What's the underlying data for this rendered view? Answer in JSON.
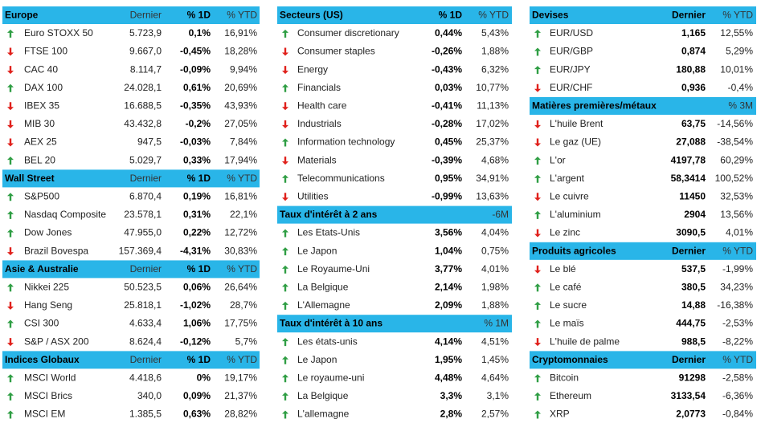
{
  "columns": [
    {
      "panels": [
        {
          "title": "Europe",
          "headers": [
            "Dernier",
            "% 1D",
            "% YTD"
          ],
          "rows": [
            {
              "name": "Euro STOXX 50",
              "trend": "up",
              "values": [
                "5.723,9",
                "0,1%",
                "16,91%"
              ]
            },
            {
              "name": "FTSE 100",
              "trend": "down",
              "values": [
                "9.667,0",
                "-0,45%",
                "18,28%"
              ]
            },
            {
              "name": "CAC 40",
              "trend": "down",
              "values": [
                "8.114,7",
                "-0,09%",
                "9,94%"
              ]
            },
            {
              "name": "DAX 100",
              "trend": "up",
              "values": [
                "24.028,1",
                "0,61%",
                "20,69%"
              ]
            },
            {
              "name": "IBEX 35",
              "trend": "down",
              "values": [
                "16.688,5",
                "-0,35%",
                "43,93%"
              ]
            },
            {
              "name": "MIB 30",
              "trend": "down",
              "values": [
                "43.432,8",
                "-0,2%",
                "27,05%"
              ]
            },
            {
              "name": "AEX 25",
              "trend": "down",
              "values": [
                "947,5",
                "-0,03%",
                "7,84%"
              ]
            },
            {
              "name": "BEL 20",
              "trend": "up",
              "values": [
                "5.029,7",
                "0,33%",
                "17,94%"
              ]
            }
          ]
        },
        {
          "title": "Wall Street",
          "headers": [
            "Dernier",
            "% 1D",
            "% YTD"
          ],
          "rows": [
            {
              "name": "S&P500",
              "trend": "up",
              "values": [
                "6.870,4",
                "0,19%",
                "16,81%"
              ]
            },
            {
              "name": "Nasdaq Composite",
              "trend": "up",
              "values": [
                "23.578,1",
                "0,31%",
                "22,1%"
              ]
            },
            {
              "name": "Dow Jones",
              "trend": "up",
              "values": [
                "47.955,0",
                "0,22%",
                "12,72%"
              ]
            },
            {
              "name": "Brazil Bovespa",
              "trend": "down",
              "values": [
                "157.369,4",
                "-4,31%",
                "30,83%"
              ]
            }
          ]
        },
        {
          "title": "Asie & Australie",
          "headers": [
            "Dernier",
            "% 1D",
            "% YTD"
          ],
          "rows": [
            {
              "name": "Nikkei 225",
              "trend": "up",
              "values": [
                "50.523,5",
                "0,06%",
                "26,64%"
              ]
            },
            {
              "name": "Hang Seng",
              "trend": "down",
              "values": [
                "25.818,1",
                "-1,02%",
                "28,7%"
              ]
            },
            {
              "name": "CSI 300",
              "trend": "up",
              "values": [
                "4.633,4",
                "1,06%",
                "17,75%"
              ]
            },
            {
              "name": "S&P / ASX 200",
              "trend": "down",
              "values": [
                "8.624,4",
                "-0,12%",
                "5,7%"
              ]
            }
          ]
        },
        {
          "title": "Indices Globaux",
          "headers": [
            "Dernier",
            "% 1D",
            "% YTD"
          ],
          "rows": [
            {
              "name": "MSCI World",
              "trend": "up",
              "values": [
                "4.418,6",
                "0%",
                "19,17%"
              ]
            },
            {
              "name": "MSCI Brics",
              "trend": "up",
              "values": [
                "340,0",
                "0,09%",
                "21,37%"
              ]
            },
            {
              "name": "MSCI EM",
              "trend": "up",
              "values": [
                "1.385,5",
                "0,63%",
                "28,82%"
              ]
            }
          ]
        }
      ]
    },
    {
      "panels": [
        {
          "title": "Secteurs (US)",
          "headers": [
            "% 1D",
            "% YTD"
          ],
          "rows": [
            {
              "name": "Consumer discretionary",
              "trend": "up",
              "values": [
                "0,44%",
                "5,43%"
              ]
            },
            {
              "name": "Consumer staples",
              "trend": "down",
              "values": [
                "-0,26%",
                "1,88%"
              ]
            },
            {
              "name": "Energy",
              "trend": "down",
              "values": [
                "-0,43%",
                "6,32%"
              ]
            },
            {
              "name": "Financials",
              "trend": "up",
              "values": [
                "0,03%",
                "10,77%"
              ]
            },
            {
              "name": "Health care",
              "trend": "down",
              "values": [
                "-0,41%",
                "11,13%"
              ]
            },
            {
              "name": "Industrials",
              "trend": "down",
              "values": [
                "-0,28%",
                "17,02%"
              ]
            },
            {
              "name": "Information technology",
              "trend": "up",
              "values": [
                "0,45%",
                "25,37%"
              ]
            },
            {
              "name": "Materials",
              "trend": "down",
              "values": [
                "-0,39%",
                "4,68%"
              ]
            },
            {
              "name": "Telecommunications",
              "trend": "up",
              "values": [
                "0,95%",
                "34,91%"
              ]
            },
            {
              "name": "Utilities",
              "trend": "down",
              "values": [
                "-0,99%",
                "13,63%"
              ]
            }
          ]
        },
        {
          "title": "Taux d'intérêt à 2 ans",
          "headers": [
            null,
            "-6M"
          ],
          "rows": [
            {
              "name": "Les Etats-Unis",
              "trend": "up",
              "values": [
                "3,56%",
                "4,04%"
              ]
            },
            {
              "name": "Le Japon",
              "trend": "up",
              "values": [
                "1,04%",
                "0,75%"
              ]
            },
            {
              "name": "Le Royaume-Uni",
              "trend": "up",
              "values": [
                "3,77%",
                "4,01%"
              ]
            },
            {
              "name": "La Belgique",
              "trend": "up",
              "values": [
                "2,14%",
                "1,98%"
              ]
            },
            {
              "name": "L'Allemagne",
              "trend": "up",
              "values": [
                "2,09%",
                "1,88%"
              ]
            }
          ]
        },
        {
          "title": "Taux d'intérêt à 10 ans",
          "headers": [
            null,
            "% 1M"
          ],
          "rows": [
            {
              "name": "Les états-unis",
              "trend": "up",
              "values": [
                "4,14%",
                "4,51%"
              ]
            },
            {
              "name": "Le Japon",
              "trend": "up",
              "values": [
                "1,95%",
                "1,45%"
              ]
            },
            {
              "name": "Le royaume-uni",
              "trend": "up",
              "values": [
                "4,48%",
                "4,64%"
              ]
            },
            {
              "name": "La Belgique",
              "trend": "up",
              "values": [
                "3,3%",
                "3,1%"
              ]
            },
            {
              "name": "L'allemagne",
              "trend": "up",
              "values": [
                "2,8%",
                "2,57%"
              ]
            }
          ]
        }
      ]
    },
    {
      "panels": [
        {
          "title": "Devises",
          "headers": [
            "Dernier",
            "% YTD"
          ],
          "rows": [
            {
              "name": "EUR/USD",
              "trend": "up",
              "values": [
                "1,165",
                "12,55%"
              ]
            },
            {
              "name": "EUR/GBP",
              "trend": "up",
              "values": [
                "0,874",
                "5,29%"
              ]
            },
            {
              "name": "EUR/JPY",
              "trend": "up",
              "values": [
                "180,88",
                "10,01%"
              ]
            },
            {
              "name": "EUR/CHF",
              "trend": "down",
              "values": [
                "0,936",
                "-0,4%"
              ]
            }
          ]
        },
        {
          "title": "Matières premières/métaux",
          "headers": [
            null,
            "% 3M"
          ],
          "rows": [
            {
              "name": "L'huile Brent",
              "trend": "down",
              "values": [
                "63,75",
                "-14,56%"
              ]
            },
            {
              "name": "Le gaz (UE)",
              "trend": "down",
              "values": [
                "27,088",
                "-38,54%"
              ]
            },
            {
              "name": "L'or",
              "trend": "up",
              "values": [
                "4197,78",
                "60,29%"
              ]
            },
            {
              "name": "L'argent",
              "trend": "up",
              "values": [
                "58,3414",
                "100,52%"
              ]
            },
            {
              "name": "Le cuivre",
              "trend": "down",
              "values": [
                "11450",
                "32,53%"
              ]
            },
            {
              "name": "L'aluminium",
              "trend": "up",
              "values": [
                "2904",
                "13,56%"
              ]
            },
            {
              "name": "Le zinc",
              "trend": "down",
              "values": [
                "3090,5",
                "4,01%"
              ]
            }
          ]
        },
        {
          "title": "Produits agricoles",
          "headers": [
            "Dernier",
            "% YTD"
          ],
          "rows": [
            {
              "name": "Le blé",
              "trend": "down",
              "values": [
                "537,5",
                "-1,99%"
              ]
            },
            {
              "name": "Le café",
              "trend": "up",
              "values": [
                "380,5",
                "34,23%"
              ]
            },
            {
              "name": "Le sucre",
              "trend": "up",
              "values": [
                "14,88",
                "-16,38%"
              ]
            },
            {
              "name": "Le maïs",
              "trend": "up",
              "values": [
                "444,75",
                "-2,53%"
              ]
            },
            {
              "name": "L'huile de palme",
              "trend": "down",
              "values": [
                "988,5",
                "-8,22%"
              ]
            }
          ]
        },
        {
          "title": "Cryptomonnaies",
          "headers": [
            "Dernier",
            "% YTD"
          ],
          "rows": [
            {
              "name": "Bitcoin",
              "trend": "up",
              "values": [
                "91298",
                "-2,58%"
              ]
            },
            {
              "name": "Ethereum",
              "trend": "up",
              "values": [
                "3133,54",
                "-6,36%"
              ]
            },
            {
              "name": "XRP",
              "trend": "up",
              "values": [
                "2,0773",
                "-0,84%"
              ]
            }
          ]
        }
      ]
    }
  ]
}
